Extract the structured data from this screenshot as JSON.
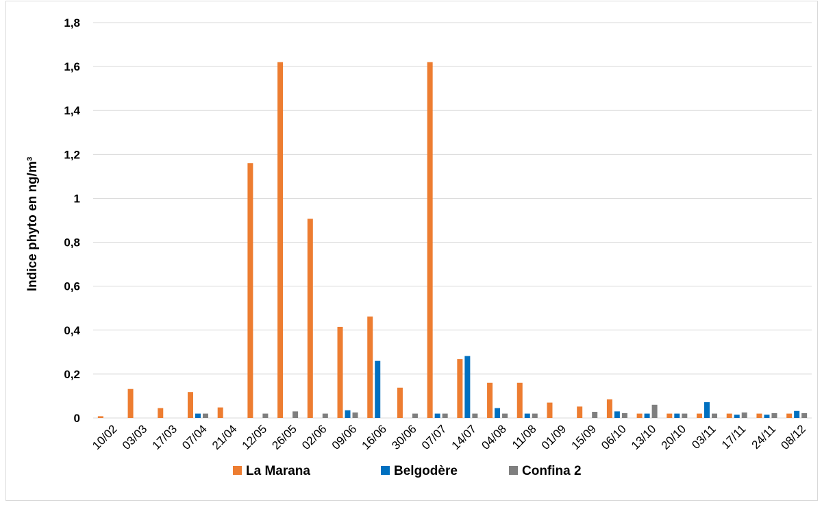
{
  "chart_data": {
    "type": "bar",
    "title": "",
    "xlabel": "",
    "ylabel": "Indice phyto en ng/m³",
    "ylim": [
      0,
      1.8
    ],
    "yticks": [
      "0",
      "0,2",
      "0,4",
      "0,6",
      "0,8",
      "1",
      "1,2",
      "1,4",
      "1,6",
      "1,8"
    ],
    "grid": true,
    "legend_position": "bottom",
    "categories": [
      "10/02",
      "03/03",
      "17/03",
      "07/04",
      "21/04",
      "12/05",
      "26/05",
      "02/06",
      "09/06",
      "16/06",
      "30/06",
      "07/07",
      "14/07",
      "04/08",
      "11/08",
      "01/09",
      "15/09",
      "06/10",
      "13/10",
      "20/10",
      "03/11",
      "17/11",
      "24/11",
      "08/12"
    ],
    "series": [
      {
        "name": "La Marana",
        "color": "#ed7d31",
        "values": [
          0.008,
          0.132,
          0.045,
          0.118,
          0.048,
          1.16,
          1.62,
          0.907,
          0.415,
          0.462,
          0.138,
          1.62,
          0.268,
          0.16,
          0.16,
          0.07,
          0.052,
          0.085,
          0.02,
          0.02,
          0.02,
          0.02,
          0.02,
          0.02
        ]
      },
      {
        "name": "Belgodère",
        "color": "#0070c0",
        "values": [
          0,
          0,
          0,
          0.02,
          0,
          0,
          0,
          0,
          0.035,
          0.26,
          0,
          0.02,
          0.282,
          0.045,
          0.02,
          0,
          0,
          0.03,
          0.02,
          0.02,
          0.072,
          0.015,
          0.015,
          0.032
        ]
      },
      {
        "name": "Confina 2",
        "color": "#7f7f7f",
        "values": [
          0,
          0,
          0,
          0.02,
          0,
          0.02,
          0.03,
          0.02,
          0.025,
          0,
          0.02,
          0.02,
          0.02,
          0.02,
          0.02,
          0,
          0.028,
          0.022,
          0.06,
          0.02,
          0.02,
          0.025,
          0.022,
          0.022
        ]
      }
    ]
  }
}
